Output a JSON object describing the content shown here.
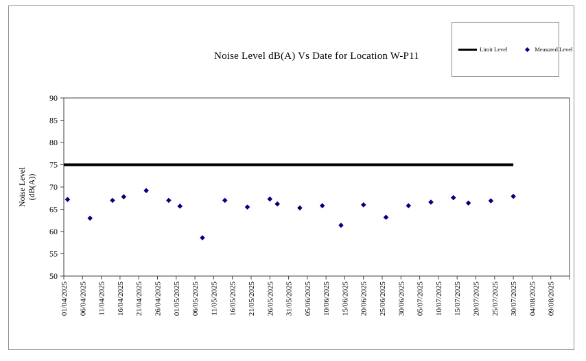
{
  "window": {
    "background": "#ffffff",
    "frame_border_color": "#8c8c8c"
  },
  "chart_data": {
    "type": "scatter",
    "title": "Noise Level dB(A) Vs Date for Location W-P11",
    "ylabel_lines": [
      "Noise Level",
      "(dB(A))"
    ],
    "ylim": [
      50,
      90
    ],
    "yticks": [
      50,
      55,
      60,
      65,
      70,
      75,
      80,
      85,
      90
    ],
    "grid": false,
    "axis_color": "#404040",
    "x_axis": {
      "start_date": "01/04/2025",
      "axis_span_days": 135,
      "tick_interval_days": 5,
      "tick_labels": [
        "01/04/2025",
        "06/04/2025",
        "11/04/2025",
        "16/04/2025",
        "21/04/2025",
        "26/04/2025",
        "01/05/2025",
        "06/05/2025",
        "11/05/2025",
        "16/05/2025",
        "21/05/2025",
        "26/05/2025",
        "31/05/2025",
        "05/06/2025",
        "10/06/2025",
        "15/06/2025",
        "20/06/2025",
        "25/06/2025",
        "30/06/2025",
        "05/07/2025",
        "10/07/2025",
        "15/07/2025",
        "20/07/2025",
        "25/07/2025",
        "30/07/2025",
        "04/08/2025",
        "09/08/2025"
      ]
    },
    "legend": {
      "position": "top-right",
      "entries": [
        {
          "label": "Limit Level",
          "type": "line",
          "color": "#000000"
        },
        {
          "label": "Measured Level",
          "type": "diamond",
          "color": "#000080"
        }
      ]
    },
    "limit_level": {
      "value": 75,
      "color": "#000000",
      "span_dates": [
        "01/04/2025",
        "30/07/2025"
      ]
    },
    "series": [
      {
        "name": "Measured Level",
        "marker": "diamond",
        "color": "#000080",
        "points": [
          {
            "date": "02/04/2025",
            "value": 67.2
          },
          {
            "date": "08/04/2025",
            "value": 63.0
          },
          {
            "date": "14/04/2025",
            "value": 67.0
          },
          {
            "date": "17/04/2025",
            "value": 67.8
          },
          {
            "date": "23/04/2025",
            "value": 69.2
          },
          {
            "date": "29/04/2025",
            "value": 67.0
          },
          {
            "date": "02/05/2025",
            "value": 65.7
          },
          {
            "date": "08/05/2025",
            "value": 58.6
          },
          {
            "date": "14/05/2025",
            "value": 67.0
          },
          {
            "date": "20/05/2025",
            "value": 65.5
          },
          {
            "date": "26/05/2025",
            "value": 67.3
          },
          {
            "date": "28/05/2025",
            "value": 66.2
          },
          {
            "date": "03/06/2025",
            "value": 65.3
          },
          {
            "date": "09/06/2025",
            "value": 65.8
          },
          {
            "date": "14/06/2025",
            "value": 61.4
          },
          {
            "date": "20/06/2025",
            "value": 66.0
          },
          {
            "date": "26/06/2025",
            "value": 63.2
          },
          {
            "date": "02/07/2025",
            "value": 65.8
          },
          {
            "date": "08/07/2025",
            "value": 66.6
          },
          {
            "date": "14/07/2025",
            "value": 67.6
          },
          {
            "date": "18/07/2025",
            "value": 66.4
          },
          {
            "date": "24/07/2025",
            "value": 66.9
          },
          {
            "date": "30/07/2025",
            "value": 67.9
          }
        ]
      }
    ]
  }
}
